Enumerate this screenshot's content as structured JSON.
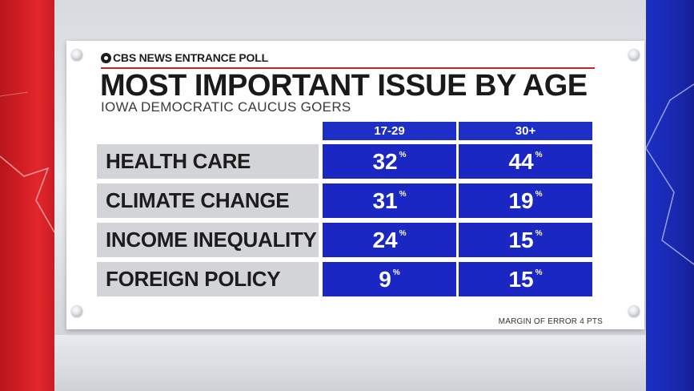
{
  "brand": "CBS NEWS ENTRANCE POLL",
  "title": "MOST IMPORTANT ISSUE BY AGE",
  "subtitle": "IOWA DEMOCRATIC CAUCUS GOERS",
  "footnote": "MARGIN OF ERROR 4 PTS",
  "percent_sign": "%",
  "colors": {
    "accent_red": "#c0262c",
    "cell_blue": "#1a27c2",
    "label_gray": "#d3d4d8",
    "left_panel": "#e3262b",
    "right_panel": "#1a28b0"
  },
  "chart_data": {
    "type": "table",
    "title": "MOST IMPORTANT ISSUE BY AGE",
    "subtitle": "IOWA DEMOCRATIC CAUCUS GOERS",
    "columns": [
      "17-29",
      "30+"
    ],
    "categories": [
      "HEALTH CARE",
      "CLIMATE CHANGE",
      "INCOME INEQUALITY",
      "FOREIGN POLICY"
    ],
    "series": [
      {
        "name": "17-29",
        "values": [
          32,
          31,
          24,
          9
        ]
      },
      {
        "name": "30+",
        "values": [
          44,
          19,
          15,
          15
        ]
      }
    ],
    "unit": "%"
  }
}
